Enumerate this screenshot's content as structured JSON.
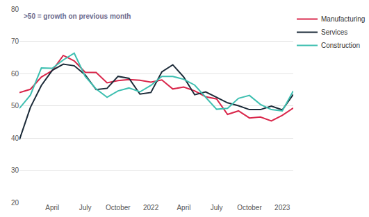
{
  "chart_data": {
    "type": "line",
    "annotations": [
      ">50 = growth on previous month"
    ],
    "categories": [
      null,
      null,
      null,
      "April",
      null,
      null,
      "July",
      null,
      null,
      "October",
      null,
      null,
      "2022",
      null,
      null,
      "April",
      null,
      null,
      "July",
      null,
      null,
      "October",
      null,
      null,
      "2023",
      null
    ],
    "series": [
      {
        "name": "Manufacturing",
        "color": "#d9264a",
        "values": [
          54.1,
          55.1,
          58.9,
          60.9,
          65.6,
          63.9,
          60.4,
          60.3,
          57.1,
          57.8,
          58.1,
          57.9,
          57.3,
          58.0,
          55.2,
          55.8,
          54.6,
          52.8,
          52.1,
          47.3,
          48.4,
          46.2,
          46.5,
          45.3,
          47.0,
          49.3
        ]
      },
      {
        "name": "Services",
        "color": "#1b2a38",
        "values": [
          39.5,
          49.5,
          56.3,
          61.0,
          62.9,
          62.4,
          59.6,
          55.0,
          55.4,
          59.1,
          58.5,
          53.6,
          54.1,
          60.5,
          62.7,
          58.9,
          53.4,
          54.3,
          52.6,
          50.9,
          50.0,
          48.8,
          48.8,
          49.9,
          48.7,
          53.5
        ]
      },
      {
        "name": "Construction",
        "color": "#3dbfb0",
        "values": [
          49.2,
          53.3,
          61.7,
          61.6,
          64.2,
          66.3,
          59.1,
          55.2,
          52.6,
          54.6,
          55.5,
          54.3,
          56.3,
          59.1,
          59.1,
          58.2,
          56.4,
          52.6,
          48.9,
          49.2,
          52.3,
          53.2,
          50.4,
          48.8,
          48.4,
          54.6
        ]
      }
    ],
    "ylim": [
      20,
      80
    ],
    "yticks": [
      20,
      30,
      40,
      50,
      60,
      70,
      80
    ],
    "grid": true,
    "legend": "right"
  }
}
